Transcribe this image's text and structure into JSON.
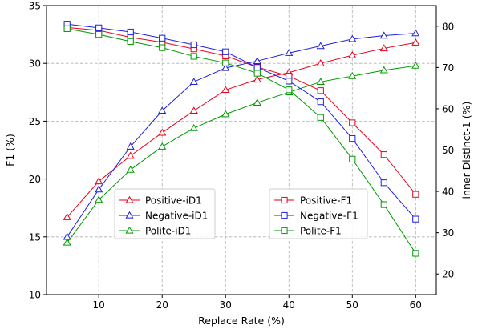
{
  "chart_data": {
    "type": "line",
    "title": "",
    "xlabel": "Replace Rate (%)",
    "ylabel_left": "F1 (%)",
    "ylabel_right": "inner Distinct-1 (%)",
    "x": [
      5,
      10,
      15,
      20,
      25,
      30,
      35,
      40,
      45,
      50,
      55,
      60
    ],
    "xlim": [
      1.75,
      63.25
    ],
    "xticks": [
      10,
      20,
      30,
      40,
      50,
      60
    ],
    "ylim_left": [
      10,
      35
    ],
    "yticks_left": [
      10,
      15,
      20,
      25,
      30,
      35
    ],
    "ylim_right": [
      15,
      85
    ],
    "yticks_right": [
      20,
      30,
      40,
      50,
      60,
      70,
      80
    ],
    "grid": true,
    "colors": {
      "positive": "#e8001c",
      "negative": "#1f1fe0",
      "polite": "#009a00"
    },
    "series": [
      {
        "name": "Positive-iD1",
        "axis": "left",
        "marker": "triangle",
        "color": "#e8001c",
        "values": [
          16.7,
          19.8,
          22.0,
          24.0,
          25.9,
          27.7,
          28.6,
          29.2,
          30.0,
          30.7,
          31.3,
          31.8
        ]
      },
      {
        "name": "Negative-iD1",
        "axis": "left",
        "marker": "triangle",
        "color": "#1f1fe0",
        "values": [
          15.0,
          19.1,
          22.8,
          25.9,
          28.4,
          29.6,
          30.2,
          30.9,
          31.5,
          32.1,
          32.4,
          32.6
        ]
      },
      {
        "name": "Polite-iD1",
        "axis": "left",
        "marker": "triangle",
        "color": "#009a00",
        "values": [
          14.5,
          18.2,
          20.8,
          22.8,
          24.4,
          25.6,
          26.6,
          27.5,
          28.4,
          28.9,
          29.4,
          29.8
        ]
      },
      {
        "name": "Positive-F1",
        "axis": "right",
        "marker": "square",
        "color": "#e8001c",
        "values": [
          79.7,
          79.0,
          77.3,
          76.1,
          74.5,
          72.8,
          70.1,
          67.9,
          64.4,
          56.6,
          48.9,
          39.3
        ]
      },
      {
        "name": "Negative-F1",
        "axis": "right",
        "marker": "square",
        "color": "#1f1fe0",
        "values": [
          80.5,
          79.6,
          78.6,
          77.1,
          75.5,
          73.8,
          70.0,
          66.7,
          61.7,
          52.8,
          42.1,
          33.3
        ]
      },
      {
        "name": "Polite-F1",
        "axis": "right",
        "marker": "square",
        "color": "#009a00",
        "values": [
          79.4,
          78.0,
          76.3,
          74.8,
          72.7,
          71.1,
          68.6,
          64.6,
          57.9,
          47.8,
          36.8,
          25.0
        ]
      }
    ],
    "legends": [
      {
        "position": "lower-left",
        "entries": [
          "Positive-iD1",
          "Negative-iD1",
          "Polite-iD1"
        ]
      },
      {
        "position": "lower-center-right",
        "entries": [
          "Positive-F1",
          "Negative-F1",
          "Polite-F1"
        ]
      }
    ]
  }
}
